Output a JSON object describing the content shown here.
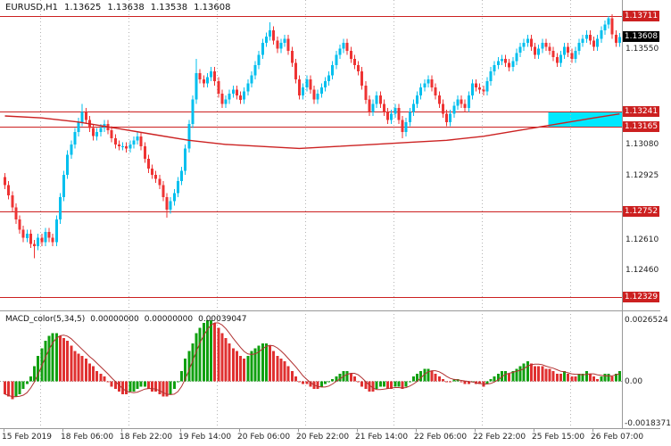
{
  "header": {
    "symbol": "EURUSD,H1",
    "ohlc": [
      "1.13625",
      "1.13638",
      "1.13538",
      "1.13608"
    ]
  },
  "colors": {
    "up": "#00bfee",
    "down": "#ee3333",
    "macd_up": "#10a010",
    "macd_down": "#e03030",
    "level_line": "#cc2020",
    "level_box": "#cc2020",
    "current_box": "#000000",
    "ma_line": "#cc2222",
    "signal": "#b03030",
    "zone": "#00e8ff",
    "grid": "#b4b4b4",
    "axis_border": "#989898",
    "text": "#111111"
  },
  "chart_data": {
    "type": "candlestick",
    "symbol": "EURUSD",
    "timeframe": "H1",
    "title": "EURUSD,H1 1.13625 1.13638 1.13538 1.13608",
    "price_axis": {
      "top": 1.1379,
      "bottom": 1.12268,
      "tick_labels": [
        "1.13550",
        "1.13080",
        "1.12925",
        "1.12610",
        "1.12460"
      ]
    },
    "levels": [
      "1.13711",
      "1.13241",
      "1.13165",
      "1.12752",
      "1.12329"
    ],
    "current_price": "1.13608",
    "x_labels": [
      "15 Feb 2019",
      "18 Feb 06:00",
      "18 Feb 22:00",
      "19 Feb 14:00",
      "20 Feb 06:00",
      "20 Feb 22:00",
      "21 Feb 14:00",
      "22 Feb 06:00",
      "22 Feb 22:00",
      "25 Feb 15:00",
      "26 Feb 07:00"
    ],
    "day_separators_x": [
      45,
      144,
      243,
      342,
      441,
      540,
      639
    ],
    "zone": {
      "start_index": 148,
      "price_top": 1.13241,
      "price_bottom": 1.13165
    },
    "first_open": 1.1292,
    "wick": 0.0002,
    "wick_overrides": {
      "8": {
        "low": 1.1252
      },
      "21": {
        "high": 1.1328
      },
      "44": {
        "low": 1.1272
      },
      "52": {
        "high": 1.135
      },
      "72": {
        "high": 1.1368
      },
      "108": {
        "low": 1.1311
      },
      "164": {
        "high": 1.13711
      }
    },
    "closes": [
      1.1288,
      1.1283,
      1.1277,
      1.1271,
      1.1266,
      1.1262,
      1.1264,
      1.1259,
      1.1258,
      1.1262,
      1.126,
      1.1265,
      1.1262,
      1.126,
      1.1271,
      1.1282,
      1.1293,
      1.1303,
      1.1308,
      1.1314,
      1.1319,
      1.1324,
      1.132,
      1.1316,
      1.1312,
      1.1314,
      1.1316,
      1.1318,
      1.1315,
      1.1311,
      1.1308,
      1.1307,
      1.1307,
      1.1306,
      1.1308,
      1.131,
      1.1312,
      1.1307,
      1.1301,
      1.1296,
      1.1293,
      1.1291,
      1.1288,
      1.1282,
      1.1276,
      1.128,
      1.1284,
      1.129,
      1.1295,
      1.1306,
      1.1318,
      1.133,
      1.1343,
      1.134,
      1.1338,
      1.1341,
      1.1344,
      1.1339,
      1.1333,
      1.1328,
      1.133,
      1.1333,
      1.1335,
      1.1332,
      1.133,
      1.1334,
      1.1338,
      1.1342,
      1.1347,
      1.1352,
      1.1358,
      1.1361,
      1.1364,
      1.1359,
      1.1355,
      1.1358,
      1.136,
      1.1354,
      1.1348,
      1.134,
      1.1332,
      1.1336,
      1.134,
      1.1335,
      1.133,
      1.1333,
      1.1336,
      1.1339,
      1.1342,
      1.1347,
      1.1352,
      1.1355,
      1.1358,
      1.1354,
      1.135,
      1.1347,
      1.1344,
      1.1337,
      1.133,
      1.1324,
      1.1328,
      1.1332,
      1.1328,
      1.1324,
      1.132,
      1.1323,
      1.1326,
      1.132,
      1.1314,
      1.1319,
      1.1324,
      1.1328,
      1.1332,
      1.1336,
      1.1338,
      1.134,
      1.1336,
      1.1332,
      1.1328,
      1.1323,
      1.1319,
      1.1323,
      1.1327,
      1.133,
      1.1328,
      1.1326,
      1.1332,
      1.1338,
      1.1336,
      1.1335,
      1.1334,
      1.1339,
      1.1344,
      1.1347,
      1.1349,
      1.135,
      1.1348,
      1.1346,
      1.1349,
      1.1353,
      1.1356,
      1.1358,
      1.136,
      1.1356,
      1.1352,
      1.1355,
      1.1358,
      1.1356,
      1.1354,
      1.1351,
      1.1348,
      1.1352,
      1.1356,
      1.1353,
      1.135,
      1.1354,
      1.1358,
      1.136,
      1.1362,
      1.1359,
      1.1356,
      1.136,
      1.1364,
      1.1367,
      1.137,
      1.1362,
      1.1358,
      1.13608
    ],
    "ma_points": [
      [
        0,
        1.1322
      ],
      [
        10,
        1.1321
      ],
      [
        20,
        1.1319
      ],
      [
        30,
        1.1316
      ],
      [
        40,
        1.1313
      ],
      [
        50,
        1.131
      ],
      [
        60,
        1.1308
      ],
      [
        70,
        1.1307
      ],
      [
        80,
        1.1306
      ],
      [
        90,
        1.1307
      ],
      [
        100,
        1.1308
      ],
      [
        110,
        1.1309
      ],
      [
        120,
        1.131
      ],
      [
        130,
        1.1312
      ],
      [
        140,
        1.1315
      ],
      [
        150,
        1.1318
      ],
      [
        160,
        1.1321
      ],
      [
        167,
        1.1323
      ]
    ],
    "macd": {
      "name": "MACD_color(5,34,5)",
      "display_values": [
        "0.00000000",
        "0.00000000",
        "0.00039047"
      ],
      "axis": {
        "top": 0.0026524,
        "bottom": -0.0018371,
        "labels": {
          "max": "0.0026524",
          "zero": "0.00",
          "min": "-0.0018371"
        }
      },
      "hist": [
        -0.0005,
        -0.0006,
        -0.0007,
        -0.0006,
        -0.0005,
        -0.0003,
        -0.0001,
        0.0002,
        0.0006,
        0.001,
        0.0013,
        0.0016,
        0.0018,
        0.0019,
        0.0019,
        0.0018,
        0.0017,
        0.0016,
        0.0014,
        0.0012,
        0.0011,
        0.001,
        0.0009,
        0.0007,
        0.0006,
        0.0004,
        0.0003,
        0.0002,
        0.0,
        -0.0002,
        -0.0003,
        -0.0004,
        -0.0005,
        -0.0005,
        -0.0004,
        -0.0004,
        -0.0003,
        -0.0002,
        -0.0002,
        -0.0003,
        -0.0004,
        -0.0004,
        -0.0005,
        -0.0006,
        -0.0006,
        -0.0005,
        -0.0003,
        0.0,
        0.0004,
        0.0009,
        0.0012,
        0.0015,
        0.0019,
        0.0021,
        0.0023,
        0.0024,
        0.0024,
        0.0023,
        0.0021,
        0.0019,
        0.0017,
        0.0015,
        0.0013,
        0.0012,
        0.001,
        0.0009,
        0.001,
        0.0012,
        0.0013,
        0.0014,
        0.0015,
        0.0015,
        0.0014,
        0.0012,
        0.001,
        0.0009,
        0.0008,
        0.0006,
        0.0004,
        0.0002,
        0.0,
        -0.0001,
        -0.0001,
        -0.0002,
        -0.0003,
        -0.0003,
        -0.0002,
        -0.0001,
        0.0,
        0.0001,
        0.0002,
        0.0003,
        0.0004,
        0.0004,
        0.0003,
        0.0002,
        0.0,
        -0.0002,
        -0.0003,
        -0.0004,
        -0.0004,
        -0.0003,
        -0.0002,
        -0.0002,
        -0.0003,
        -0.0003,
        -0.0002,
        -0.0002,
        -0.0003,
        -0.0002,
        0.0,
        0.0002,
        0.0003,
        0.0004,
        0.0005,
        0.0005,
        0.0004,
        0.0003,
        0.0002,
        0.0001,
        0.0,
        0.0,
        0.0001,
        0.0001,
        0.0,
        -0.0001,
        -0.0001,
        0.0,
        -0.0001,
        -0.0001,
        -0.0002,
        -0.0001,
        0.0001,
        0.0002,
        0.0003,
        0.0004,
        0.0004,
        0.0003,
        0.0004,
        0.0005,
        0.0006,
        0.0007,
        0.0008,
        0.0007,
        0.0006,
        0.0006,
        0.0006,
        0.0005,
        0.0005,
        0.0004,
        0.0003,
        0.0003,
        0.0004,
        0.0003,
        0.0002,
        0.0002,
        0.0003,
        0.0003,
        0.0004,
        0.0003,
        0.0002,
        0.0001,
        0.0002,
        0.0003,
        0.0003,
        0.0002,
        0.0003,
        0.0004
      ]
    }
  }
}
